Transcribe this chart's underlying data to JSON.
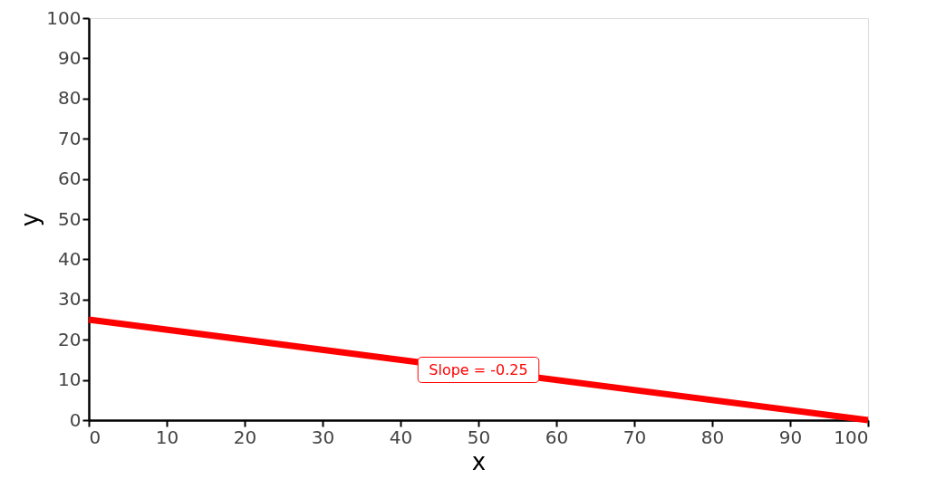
{
  "chart_data": {
    "type": "line",
    "xlabel": "x",
    "ylabel": "y",
    "x": [
      0,
      100
    ],
    "series": [
      {
        "color": "#ff0000",
        "values": [
          25,
          0
        ]
      }
    ],
    "xlim": [
      0,
      100
    ],
    "xticks": [
      0,
      10,
      20,
      30,
      40,
      50,
      60,
      70,
      80,
      90,
      100
    ],
    "ylim": [
      0,
      100
    ],
    "yticks": [
      0,
      10,
      20,
      30,
      40,
      50,
      60,
      70,
      80,
      90,
      100
    ],
    "annotations": [
      {
        "text": "Slope = -0.25",
        "x": 50,
        "y": 12.5
      }
    ],
    "grid": false
  }
}
